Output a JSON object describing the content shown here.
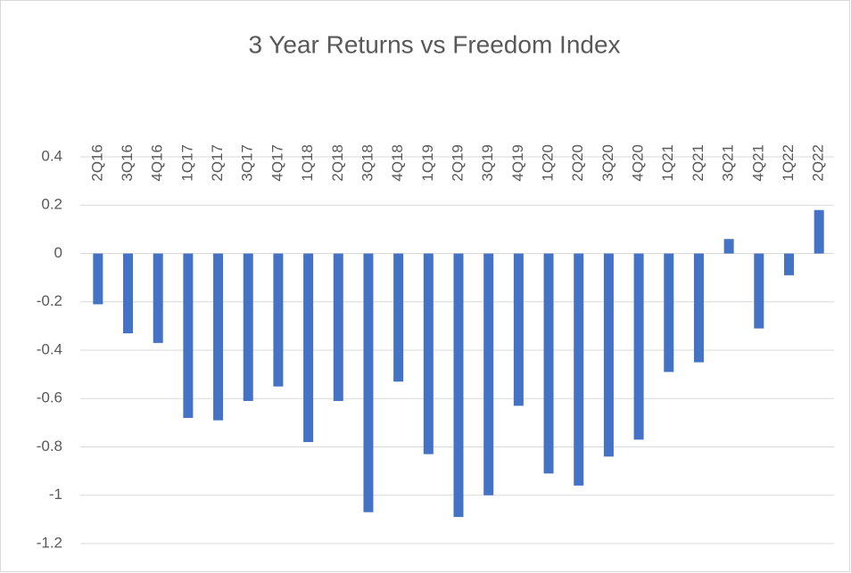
{
  "chart_data": {
    "type": "bar",
    "title": "3 Year Returns vs Freedom Index",
    "categories": [
      "2Q16",
      "3Q16",
      "4Q16",
      "1Q17",
      "2Q17",
      "3Q17",
      "4Q17",
      "1Q18",
      "2Q18",
      "3Q18",
      "4Q18",
      "1Q19",
      "2Q19",
      "3Q19",
      "4Q19",
      "1Q20",
      "2Q20",
      "3Q20",
      "4Q20",
      "1Q21",
      "2Q21",
      "3Q21",
      "4Q21",
      "1Q22",
      "2Q22"
    ],
    "values": [
      -0.21,
      -0.33,
      -0.37,
      -0.68,
      -0.69,
      -0.61,
      -0.55,
      -0.78,
      -0.61,
      -1.07,
      -0.53,
      -0.83,
      -1.09,
      -1.0,
      -0.63,
      -0.91,
      -0.96,
      -0.84,
      -0.77,
      -0.49,
      -0.45,
      0.06,
      -0.31,
      -0.09,
      0.18
    ],
    "color": "#4472c4",
    "ylim": [
      -1.2,
      0.4
    ],
    "yticks": [
      0.4,
      0.2,
      0,
      -0.2,
      -0.4,
      -0.6,
      -0.8,
      -1,
      -1.2
    ],
    "grid": true
  }
}
